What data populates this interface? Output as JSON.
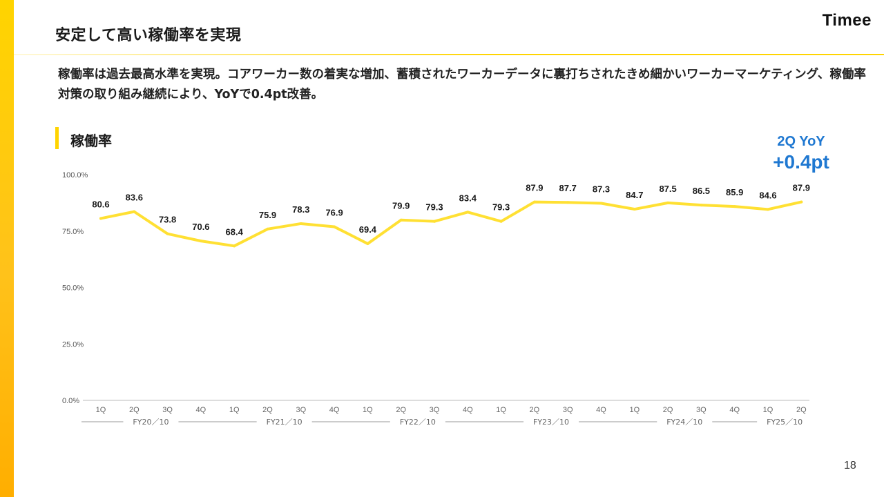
{
  "header": {
    "title": "安定して高い稼働率を実現",
    "logo_text": "Timee"
  },
  "lead_text": "稼働率は過去最高水準を実現。コアワーカー数の着実な増加、蓄積されたワーカーデータに裏打ちされたきめ細かいワーカーマーケティング、稼働率対策の取り組み継続により、YoYで0.4pt改善。",
  "section": {
    "label": "稼働率"
  },
  "callout": {
    "label": "2Q YoY",
    "value": "+0.4pt"
  },
  "chart_data": {
    "type": "line",
    "title": "",
    "xlabel": "",
    "ylabel": "",
    "ylim": [
      0,
      100
    ],
    "y_ticks": [
      "0.0%",
      "25.0%",
      "50.0%",
      "75.0%",
      "100.0%"
    ],
    "grid": false,
    "categories": [
      "1Q",
      "2Q",
      "3Q",
      "4Q",
      "1Q",
      "2Q",
      "3Q",
      "4Q",
      "1Q",
      "2Q",
      "3Q",
      "4Q",
      "1Q",
      "2Q",
      "3Q",
      "4Q",
      "1Q",
      "2Q",
      "3Q",
      "4Q",
      "1Q",
      "2Q"
    ],
    "fiscal_years": [
      {
        "label": "FY20／10",
        "quarters": 4
      },
      {
        "label": "FY21／10",
        "quarters": 4
      },
      {
        "label": "FY22／10",
        "quarters": 4
      },
      {
        "label": "FY23／10",
        "quarters": 4
      },
      {
        "label": "FY24／10",
        "quarters": 4
      },
      {
        "label": "FY25／10",
        "quarters": 2
      }
    ],
    "series": [
      {
        "values": [
          80.6,
          83.6,
          73.8,
          70.6,
          68.4,
          75.9,
          78.3,
          76.9,
          69.4,
          79.9,
          79.3,
          83.4,
          79.3,
          87.9,
          87.7,
          87.3,
          84.7,
          87.5,
          86.5,
          85.9,
          84.6,
          87.9
        ],
        "labels": [
          "80.6",
          "83.6",
          "73.8",
          "70.6",
          "68.4",
          "75.9",
          "78.3",
          "76.9",
          "69.4",
          "79.9",
          "79.3",
          "83.4",
          "79.3",
          "87.9",
          "87.7",
          "87.3",
          "84.7",
          "87.5",
          "86.5",
          "85.9",
          "84.6",
          "87.9"
        ],
        "color": "#ffe033"
      }
    ]
  },
  "page_number": "18"
}
